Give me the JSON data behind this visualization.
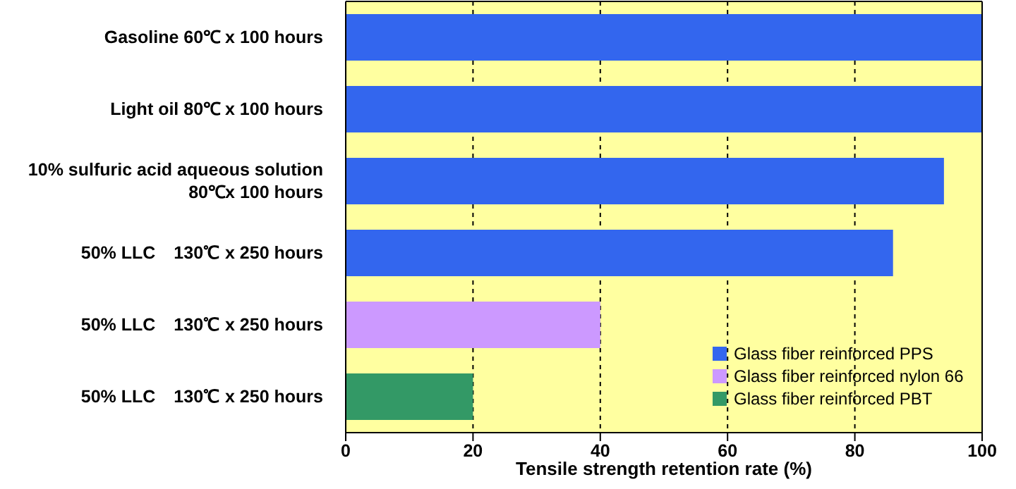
{
  "chart_data": {
    "type": "bar",
    "orientation": "horizontal",
    "stacked": true,
    "categories": [
      "Gasoline 60℃ x 100 hours",
      "Light oil 80℃ x 100 hours",
      "10% sulfuric acid aqueous solution 80℃x 100 hours",
      "50% LLC　130℃ x 250 hours",
      "50% LLC　130℃ x 250 hours",
      "50% LLC　130℃ x 250 hours"
    ],
    "series": [
      {
        "name": "Glass fiber reinforced PPS",
        "color": "#3366ee",
        "values": [
          100,
          100,
          94,
          86,
          null,
          null
        ]
      },
      {
        "name": "Glass fiber reinforced nylon 66",
        "color": "#cc99ff",
        "values": [
          null,
          null,
          null,
          null,
          40,
          null
        ]
      },
      {
        "name": "Glass fiber reinforced PBT",
        "color": "#339966",
        "values": [
          null,
          null,
          null,
          null,
          null,
          20
        ]
      }
    ],
    "xlim": [
      0,
      100
    ],
    "xticks": [
      0,
      20,
      40,
      60,
      80,
      100
    ],
    "xlabel": "Tensile strength retention rate (%)",
    "grid": "x",
    "legend": "bottom right"
  }
}
